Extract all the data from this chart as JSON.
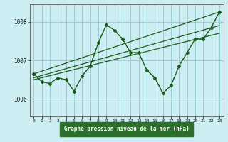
{
  "title": "Graphe pression niveau de la mer (hPa)",
  "bg_color": "#cceef2",
  "grid_color": "#99cdd4",
  "line_color": "#1a5c1a",
  "xlabel_bg": "#2d6e2d",
  "xlabel_fg": "#ffffff",
  "xlim": [
    -0.5,
    23.5
  ],
  "ylim": [
    1005.55,
    1008.45
  ],
  "yticks": [
    1006,
    1007,
    1008
  ],
  "xticks": [
    0,
    1,
    2,
    3,
    4,
    5,
    6,
    7,
    8,
    9,
    10,
    11,
    12,
    13,
    14,
    15,
    16,
    17,
    18,
    19,
    20,
    21,
    22,
    23
  ],
  "series": [
    {
      "x": [
        0,
        1,
        2,
        3,
        4,
        5,
        6,
        7,
        8,
        9,
        10,
        11,
        12,
        13,
        14,
        15,
        16,
        17,
        18,
        19,
        20,
        21,
        22,
        23
      ],
      "y": [
        1006.65,
        1006.45,
        1006.4,
        1006.55,
        1006.5,
        1006.2,
        1006.6,
        1006.85,
        1007.45,
        1007.92,
        1007.78,
        1007.55,
        1007.2,
        1007.2,
        1006.75,
        1006.55,
        1006.15,
        1006.35,
        1006.85,
        1007.2,
        1007.55,
        1007.55,
        1007.85,
        1008.25
      ],
      "style": "dotted",
      "marker": "D",
      "markersize": 2.5
    },
    {
      "x": [
        0,
        1,
        2,
        3,
        4,
        5,
        6,
        7,
        8,
        9,
        10,
        11,
        12,
        13,
        14,
        15,
        16,
        17,
        18,
        19,
        20,
        21,
        22,
        23
      ],
      "y": [
        1006.65,
        1006.45,
        1006.4,
        1006.55,
        1006.5,
        1006.2,
        1006.6,
        1006.85,
        1007.45,
        1007.92,
        1007.78,
        1007.55,
        1007.2,
        1007.2,
        1006.75,
        1006.55,
        1006.15,
        1006.35,
        1006.85,
        1007.2,
        1007.55,
        1007.55,
        1007.85,
        1008.25
      ],
      "style": "solid",
      "marker": "D",
      "markersize": 2.5
    },
    {
      "x": [
        0,
        23
      ],
      "y": [
        1006.65,
        1008.25
      ],
      "style": "solid",
      "marker": null,
      "markersize": 0
    },
    {
      "x": [
        0,
        23
      ],
      "y": [
        1006.55,
        1007.9
      ],
      "style": "solid",
      "marker": null,
      "markersize": 0
    },
    {
      "x": [
        0,
        23
      ],
      "y": [
        1006.5,
        1007.7
      ],
      "style": "solid",
      "marker": null,
      "markersize": 0
    }
  ]
}
